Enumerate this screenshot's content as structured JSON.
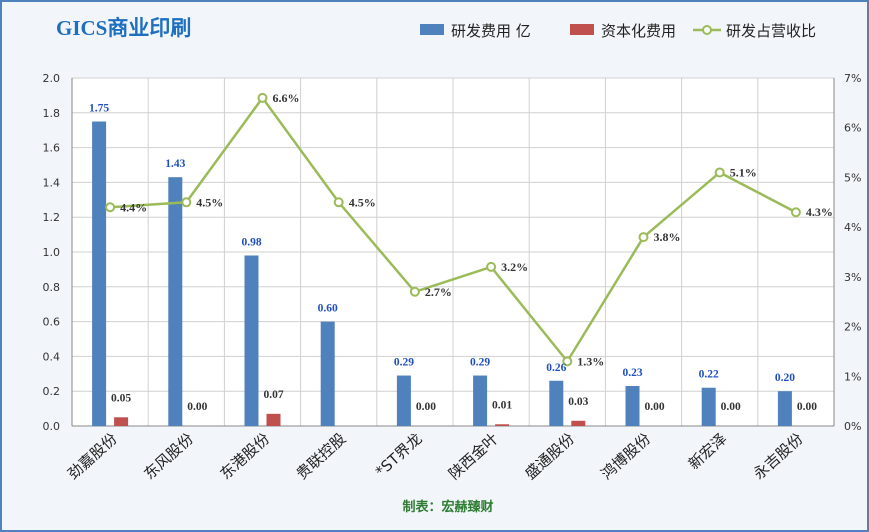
{
  "chart_data": {
    "type": "bar",
    "title": "GICS商业印刷",
    "categories": [
      "劲嘉股份",
      "东风股份",
      "东港股份",
      "贵联控股",
      "*ST界龙",
      "陕西金叶",
      "盛通股份",
      "鸿博股份",
      "新宏泽",
      "永吉股份"
    ],
    "series": [
      {
        "name": "研发费用 亿",
        "type": "bar",
        "axis": "left",
        "color": "#4f81bd",
        "values": [
          1.75,
          1.43,
          0.98,
          0.6,
          0.29,
          0.29,
          0.26,
          0.23,
          0.22,
          0.2
        ],
        "labels": [
          "1.75",
          "1.43",
          "0.98",
          "0.60",
          "0.29",
          "0.29",
          "0.26",
          "0.23",
          "0.22",
          "0.20"
        ]
      },
      {
        "name": "资本化费用",
        "type": "bar",
        "axis": "left",
        "color": "#c0504d",
        "values": [
          0.05,
          0.0,
          0.07,
          null,
          0.0,
          0.01,
          0.03,
          0.0,
          0.0,
          0.0
        ],
        "labels": [
          "0.05",
          "0.00",
          "0.07",
          "",
          "0.00",
          "0.01",
          "0.03",
          "0.00",
          "0.00",
          "0.00"
        ]
      },
      {
        "name": "研发占营收比",
        "type": "line",
        "axis": "right",
        "color": "#9bbb59",
        "values": [
          4.4,
          4.5,
          6.6,
          4.5,
          2.7,
          3.2,
          1.3,
          3.8,
          5.1,
          4.3
        ],
        "labels": [
          "4.4%",
          "4.5%",
          "6.6%",
          "4.5%",
          "2.7%",
          "3.2%",
          "1.3%",
          "3.8%",
          "5.1%",
          "4.3%"
        ]
      }
    ],
    "y_left": {
      "range": [
        0,
        2.0
      ],
      "ticks": [
        "0.0",
        "0.2",
        "0.4",
        "0.6",
        "0.8",
        "1.0",
        "1.2",
        "1.4",
        "1.6",
        "1.8",
        "2.0"
      ]
    },
    "y_right": {
      "range": [
        0,
        7
      ],
      "ticks": [
        "0%",
        "1%",
        "2%",
        "3%",
        "4%",
        "5%",
        "6%",
        "7%"
      ]
    },
    "grid": true,
    "legend_position": "top-right",
    "footer": "制表：宏赫臻财",
    "colors": {
      "title": "#1f6fbf",
      "bar_label": "#1f4fbf",
      "footer": "#2e7d32",
      "border": "#4f81bd"
    }
  }
}
